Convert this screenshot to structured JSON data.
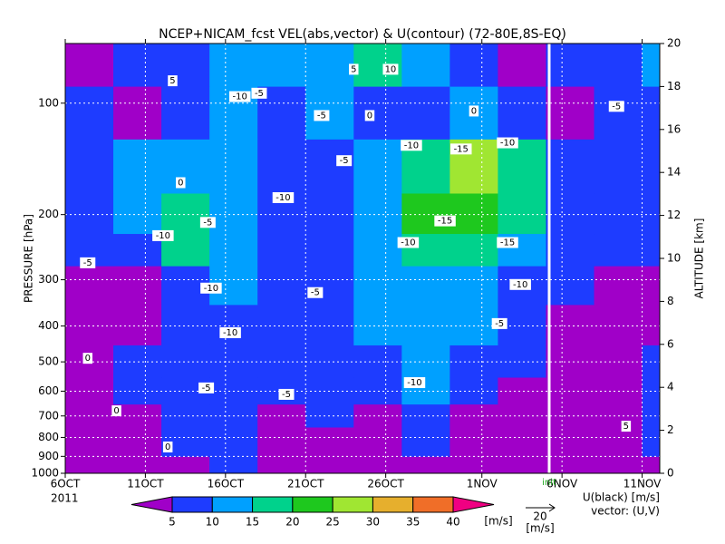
{
  "chart_data": {
    "type": "contourf",
    "title": "NCEP+NICAM_fcst VEL(abs,vector) & U(contour)  (72-80E,8S-EQ)",
    "ylabel": "PRESSURE [hPa]",
    "y2label": "ALTITUDE [km]",
    "year_label": "2011",
    "contour_note": "U(black) [m/s]",
    "vector_note": "vector: (U,V)",
    "vector_key": {
      "value": 20,
      "unit": "[m/s]"
    },
    "init": {
      "label": "init",
      "x": 30.2,
      "color": "#ffffff",
      "label_color": "#22aa22"
    },
    "xlim": [
      0,
      37.1
    ],
    "xticks": [
      {
        "value": 0,
        "label": "6OCT"
      },
      {
        "value": 5,
        "label": "11OCT"
      },
      {
        "value": 10,
        "label": "16OCT"
      },
      {
        "value": 15,
        "label": "21OCT"
      },
      {
        "value": 20,
        "label": "26OCT"
      },
      {
        "value": 26,
        "label": "1NOV"
      },
      {
        "value": 31,
        "label": "6NOV"
      },
      {
        "value": 36,
        "label": "11NOV"
      }
    ],
    "ylim": [
      1000,
      69
    ],
    "yscale": "log",
    "yticks": [
      100,
      200,
      300,
      400,
      500,
      600,
      700,
      800,
      900,
      1000
    ],
    "y2lim": [
      0,
      20
    ],
    "y2ticks": [
      0,
      2,
      4,
      6,
      8,
      10,
      12,
      14,
      16,
      18,
      20
    ],
    "grid": true,
    "colorbar": {
      "levels": [
        5,
        10,
        15,
        20,
        25,
        30,
        35,
        40
      ],
      "colors": [
        "#a000c8",
        "#1e3cff",
        "#00a0ff",
        "#00d28c",
        "#1ec81e",
        "#a0e632",
        "#e6af2d",
        "#f06e28",
        "#f00082"
      ],
      "unit": "[m/s]"
    },
    "x_edges": [
      0,
      3,
      6,
      9,
      12,
      15,
      18,
      21,
      24,
      27,
      30,
      33,
      36,
      37.1
    ],
    "p_edges": [
      1000,
      900,
      750,
      650,
      550,
      450,
      350,
      275,
      225,
      175,
      125,
      90,
      69
    ],
    "values": [
      [
        4,
        3,
        4,
        6,
        3,
        3,
        4,
        3,
        3,
        3,
        4,
        3,
        3
      ],
      [
        4,
        3,
        6,
        6,
        3,
        3,
        3,
        6,
        3,
        3,
        4,
        3,
        6
      ],
      [
        3,
        4,
        7,
        8,
        4,
        6,
        4,
        7,
        4,
        3,
        3,
        4,
        6
      ],
      [
        3,
        6,
        8,
        8,
        7,
        8,
        7,
        11,
        7,
        3,
        3,
        4,
        7
      ],
      [
        3,
        7,
        9,
        8,
        8,
        8,
        8,
        12,
        9,
        8,
        3,
        3,
        8
      ],
      [
        3,
        3,
        8,
        8,
        8,
        9,
        11,
        14,
        11,
        8,
        3,
        3,
        3
      ],
      [
        3,
        3,
        7,
        12,
        8,
        9,
        12,
        13,
        12,
        9,
        8,
        3,
        3
      ],
      [
        7,
        8,
        16,
        12,
        9,
        8,
        13,
        17,
        16,
        12,
        8,
        7,
        8
      ],
      [
        7,
        11,
        17,
        13,
        8,
        8,
        12,
        22,
        24,
        16,
        8,
        8,
        8
      ],
      [
        8,
        11,
        12,
        12,
        8,
        9,
        12,
        19,
        26,
        17,
        8,
        9,
        7
      ],
      [
        7,
        3,
        8,
        13,
        9,
        11,
        8,
        9,
        12,
        8,
        3,
        6,
        8
      ],
      [
        3,
        8,
        9,
        12,
        13,
        12,
        18,
        12,
        7,
        3,
        8,
        7,
        12
      ]
    ],
    "contour_labels": [
      {
        "value": -5,
        "x": 12.1,
        "p": 94
      },
      {
        "value": 5,
        "x": 18.0,
        "p": 81
      },
      {
        "value": 10,
        "x": 20.3,
        "p": 81
      },
      {
        "value": 5,
        "x": 6.7,
        "p": 87
      },
      {
        "value": -10,
        "x": 10.9,
        "p": 96
      },
      {
        "value": -5,
        "x": 16.0,
        "p": 108
      },
      {
        "value": 0,
        "x": 19.0,
        "p": 108
      },
      {
        "value": 0,
        "x": 25.5,
        "p": 105
      },
      {
        "value": -5,
        "x": 34.4,
        "p": 102
      },
      {
        "value": -10,
        "x": 21.6,
        "p": 130
      },
      {
        "value": -15,
        "x": 24.7,
        "p": 133
      },
      {
        "value": -10,
        "x": 27.6,
        "p": 128
      },
      {
        "value": -5,
        "x": 17.4,
        "p": 143
      },
      {
        "value": 0,
        "x": 7.2,
        "p": 164
      },
      {
        "value": -10,
        "x": 13.6,
        "p": 180
      },
      {
        "value": -5,
        "x": 8.9,
        "p": 210
      },
      {
        "value": -15,
        "x": 23.7,
        "p": 208
      },
      {
        "value": -10,
        "x": 6.1,
        "p": 228
      },
      {
        "value": -10,
        "x": 21.4,
        "p": 238
      },
      {
        "value": -15,
        "x": 27.6,
        "p": 238
      },
      {
        "value": -5,
        "x": 1.4,
        "p": 270
      },
      {
        "value": -10,
        "x": 9.1,
        "p": 316
      },
      {
        "value": -5,
        "x": 15.6,
        "p": 325
      },
      {
        "value": -10,
        "x": 28.4,
        "p": 309
      },
      {
        "value": -10,
        "x": 10.3,
        "p": 417
      },
      {
        "value": -5,
        "x": 27.1,
        "p": 394
      },
      {
        "value": 0,
        "x": 1.4,
        "p": 489
      },
      {
        "value": -10,
        "x": 21.8,
        "p": 569
      },
      {
        "value": -5,
        "x": 8.8,
        "p": 588
      },
      {
        "value": -5,
        "x": 13.8,
        "p": 612
      },
      {
        "value": 0,
        "x": 3.2,
        "p": 678
      },
      {
        "value": 0,
        "x": 6.4,
        "p": 849
      },
      {
        "value": 5,
        "x": 35.0,
        "p": 746
      }
    ]
  }
}
